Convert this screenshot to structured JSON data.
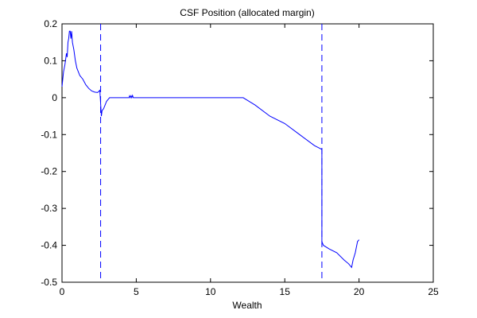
{
  "chart_data": {
    "type": "line",
    "title": "CSF Position (allocated margin)",
    "xlabel": "Wealth",
    "ylabel": "",
    "xlim": [
      0,
      25
    ],
    "ylim": [
      -0.5,
      0.2
    ],
    "xticks": [
      0,
      5,
      10,
      15,
      20,
      25
    ],
    "yticks": [
      0.2,
      0.1,
      0,
      -0.1,
      -0.2,
      -0.3,
      -0.4,
      -0.5
    ],
    "xtick_labels": [
      "0",
      "5",
      "10",
      "15",
      "20",
      "25"
    ],
    "ytick_labels": [
      "0.2",
      "0.1",
      "0",
      "-0.1",
      "-0.2",
      "-0.3",
      "-0.4",
      "-0.5"
    ],
    "grid": false,
    "legend": "none",
    "line_color": "#0000ff",
    "series": [
      {
        "x": [
          0.0,
          0.1,
          0.2,
          0.3,
          0.35,
          0.4,
          0.45,
          0.5,
          0.55,
          0.6,
          0.65,
          0.7,
          0.8,
          0.9,
          1.0,
          1.2,
          1.4,
          1.6,
          1.8,
          2.0,
          2.2,
          2.4,
          2.55,
          2.65,
          2.7,
          2.8,
          2.9,
          3.0,
          3.1,
          3.2,
          4.5,
          4.55,
          4.6,
          4.65,
          4.7,
          4.75,
          4.8,
          4.85,
          12.2,
          13.0,
          14.0,
          15.0,
          16.0,
          17.0,
          17.5,
          17.5,
          17.6,
          18.0,
          18.5,
          19.0,
          19.3,
          19.5,
          19.6,
          19.75,
          19.9,
          20.0
        ],
        "y": [
          0.03,
          0.07,
          0.09,
          0.12,
          0.11,
          0.15,
          0.16,
          0.18,
          0.18,
          0.16,
          0.18,
          0.15,
          0.13,
          0.1,
          0.08,
          0.06,
          0.05,
          0.035,
          0.025,
          0.018,
          0.015,
          0.014,
          0.02,
          -0.05,
          -0.035,
          -0.03,
          -0.02,
          -0.01,
          -0.005,
          0.0,
          0.0,
          0.005,
          0.0,
          0.005,
          0.0,
          0.006,
          0.0,
          0.0,
          0.0,
          -0.02,
          -0.05,
          -0.07,
          -0.1,
          -0.13,
          -0.14,
          -0.39,
          -0.4,
          -0.41,
          -0.42,
          -0.44,
          -0.45,
          -0.46,
          -0.44,
          -0.42,
          -0.39,
          -0.385
        ]
      }
    ],
    "vlines": [
      {
        "x": 2.6,
        "style": "dashed"
      },
      {
        "x": 17.5,
        "style": "dashed"
      }
    ]
  }
}
